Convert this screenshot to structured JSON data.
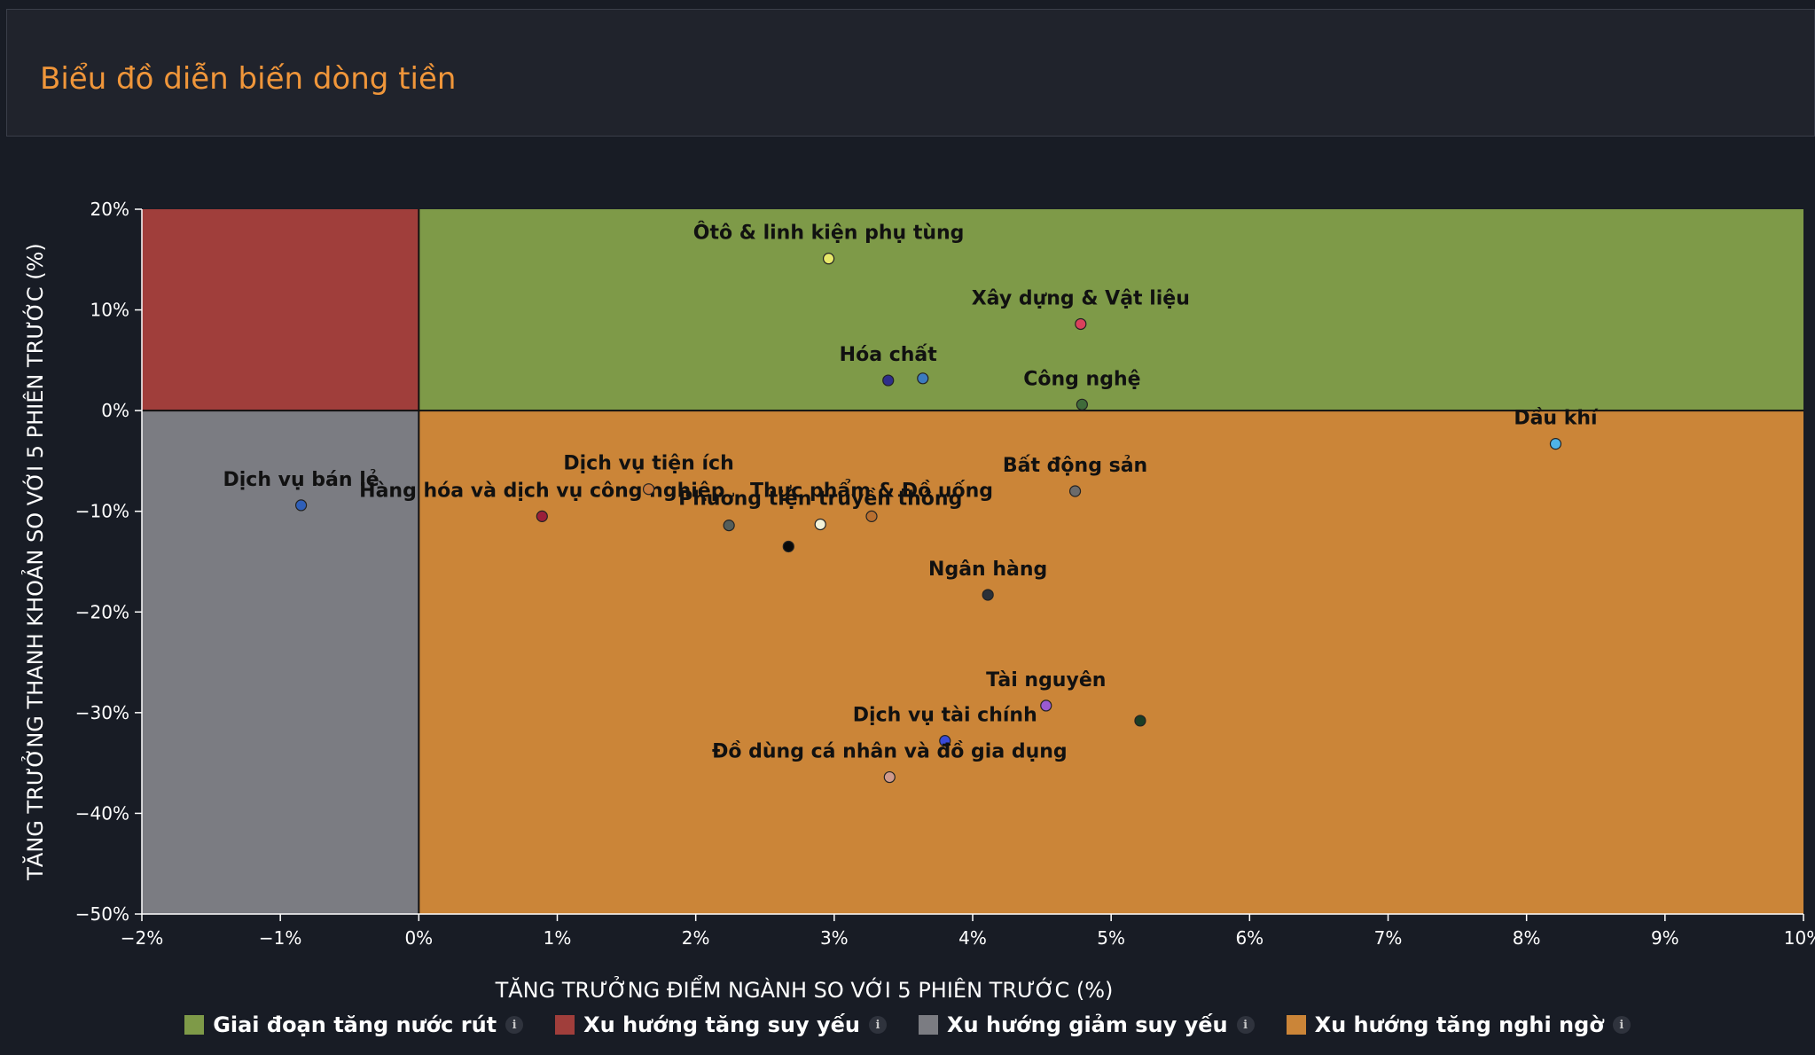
{
  "header": {
    "title": "Biểu đồ diễn biến dòng tiền"
  },
  "chart_data": {
    "type": "scatter",
    "xlabel": "TĂNG TRƯỞNG ĐIỂM NGÀNH SO VỚI 5 PHIÊN TRƯỚC (%)",
    "ylabel": "TĂNG TRƯỞNG THANH KHOẢN SO VỚI 5 PHIÊN TRƯỚC (%)",
    "xlim": [
      -2,
      10
    ],
    "ylim": [
      -50,
      20
    ],
    "x_ticks": [
      -2,
      -1,
      0,
      1,
      2,
      3,
      4,
      5,
      6,
      7,
      8,
      9,
      10
    ],
    "y_ticks": [
      20,
      10,
      0,
      -10,
      -20,
      -30,
      -40,
      -50
    ],
    "x_tick_labels": [
      "−2%",
      "−1%",
      "0%",
      "1%",
      "2%",
      "3%",
      "4%",
      "5%",
      "6%",
      "7%",
      "8%",
      "9%",
      "10%"
    ],
    "y_tick_labels": [
      "20%",
      "10%",
      "0%",
      "−10%",
      "−20%",
      "−30%",
      "−40%",
      "−50%"
    ],
    "grid": false,
    "legend_position": "bottom-center",
    "quadrants": [
      {
        "name": "Giai đoạn tăng nước rút",
        "color": "#7e9a48",
        "x_range": [
          0,
          10
        ],
        "y_range": [
          0,
          20
        ]
      },
      {
        "name": "Xu hướng tăng suy yếu",
        "color": "#a03e3b",
        "x_range": [
          -2,
          0
        ],
        "y_range": [
          0,
          20
        ]
      },
      {
        "name": "Xu hướng giảm suy yếu",
        "color": "#7b7c82",
        "x_range": [
          -2,
          0
        ],
        "y_range": [
          -50,
          0
        ]
      },
      {
        "name": "Xu hướng tăng nghi ngờ",
        "color": "#cb8538",
        "x_range": [
          0,
          10
        ],
        "y_range": [
          -50,
          0
        ]
      }
    ],
    "points": [
      {
        "x": 2.96,
        "y": 15.1,
        "label": "Ôtô & linh kiện phụ tùng",
        "color": "#e8e86a"
      },
      {
        "x": 4.78,
        "y": 8.6,
        "label": "Xây dựng & Vật liệu",
        "color": "#d9425c"
      },
      {
        "x": 3.39,
        "y": 3.0,
        "label": "Hóa chất",
        "color": "#2e2e8a"
      },
      {
        "x": 3.64,
        "y": 3.2,
        "label": "",
        "color": "#3c7bbf"
      },
      {
        "x": 4.79,
        "y": 0.6,
        "label": "Công nghệ",
        "color": "#3f6b3a"
      },
      {
        "x": 8.21,
        "y": -3.3,
        "label": "Dầu khí",
        "color": "#4fb3e6"
      },
      {
        "x": -0.85,
        "y": -9.4,
        "label": "Dịch vụ bán lẻ",
        "color": "#2f5fb8"
      },
      {
        "x": 0.89,
        "y": -10.5,
        "label": "Hàng hóa và dịch vụ công nghiệp",
        "color": "#9a1f3a"
      },
      {
        "x": 1.66,
        "y": -7.8,
        "label": "Dịch vụ tiện ích",
        "color": "#c67a3c"
      },
      {
        "x": 2.24,
        "y": -11.4,
        "label": "",
        "color": "#555e5a"
      },
      {
        "x": 2.9,
        "y": -11.3,
        "label": "Phương tiện truyền thông",
        "color": "#f2f2d8"
      },
      {
        "x": 3.27,
        "y": -10.5,
        "label": "Thực phẩm & Đồ uống",
        "color": "#b86f30"
      },
      {
        "x": 2.67,
        "y": -13.5,
        "label": "",
        "color": "#0a0a0a"
      },
      {
        "x": 4.74,
        "y": -8.0,
        "label": "Bất động sản",
        "color": "#6b6b6b"
      },
      {
        "x": 4.11,
        "y": -18.3,
        "label": "Ngân hàng",
        "color": "#2a3038"
      },
      {
        "x": 4.53,
        "y": -29.3,
        "label": "Tài nguyên",
        "color": "#9a5ad0"
      },
      {
        "x": 5.21,
        "y": -30.8,
        "label": "",
        "color": "#1b3d25"
      },
      {
        "x": 3.8,
        "y": -32.8,
        "label": "Dịch vụ tài chính",
        "color": "#3a4ad8"
      },
      {
        "x": 3.4,
        "y": -36.4,
        "label": "Đồ dùng cá nhân và đồ gia dụng",
        "color": "#d09a8c"
      }
    ]
  },
  "legend": [
    {
      "label": "Giai đoạn tăng nước rút",
      "color": "#7e9a48",
      "info_icon": "info-icon"
    },
    {
      "label": "Xu hướng tăng suy yếu",
      "color": "#a03e3b",
      "info_icon": "info-icon"
    },
    {
      "label": "Xu hướng giảm suy yếu",
      "color": "#7b7c82",
      "info_icon": "info-icon"
    },
    {
      "label": "Xu hướng tăng nghi ngờ",
      "color": "#cb8538",
      "info_icon": "info-icon"
    }
  ],
  "info_glyph": "i"
}
